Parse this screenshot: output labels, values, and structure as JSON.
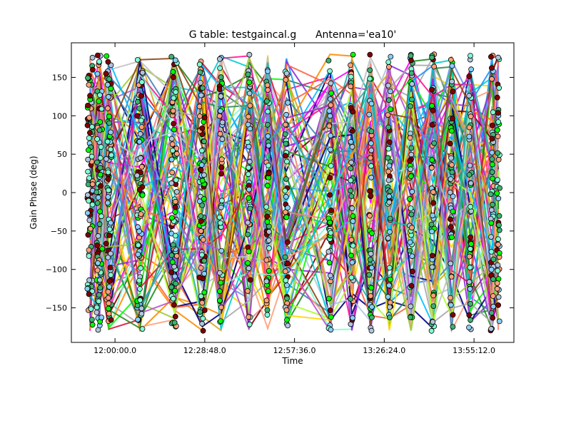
{
  "chart_data": {
    "type": "scatter",
    "title": "G table: testgaincal.g      Antenna='ea10'",
    "xlabel": "Time",
    "ylabel": "Gain Phase (deg)",
    "x_ticks": [
      "12:00:00.0",
      "12:28:48.0",
      "12:57:36.0",
      "13:26:24.0",
      "13:55:12.0"
    ],
    "y_ticks": [
      "150",
      "100",
      "50",
      "0",
      "−50",
      "−100",
      "−150"
    ],
    "xlim": [
      "11:46:00",
      "14:08:00"
    ],
    "ylim": [
      -195,
      195
    ],
    "grid": false,
    "legend": "none",
    "scans": [
      "11:52:00",
      "11:55:00",
      "11:58:00",
      "12:08:00",
      "12:19:00",
      "12:28:00",
      "12:34:00",
      "12:43:00",
      "12:49:00",
      "12:55:00",
      "13:09:00",
      "13:16:00",
      "13:22:00",
      "13:28:00",
      "13:35:00",
      "13:42:00",
      "13:48:00",
      "13:54:00",
      "14:01:00",
      "14:03:00"
    ],
    "series_colors": [
      "#ff00ff",
      "#00ff00",
      "#800000",
      "#1e90ff",
      "#ffd700",
      "#ff8c00",
      "#8a2be2",
      "#00ced1",
      "#ff1493",
      "#228b22",
      "#000080",
      "#b0c4de",
      "#7fffd4",
      "#a9a9a9",
      "#dc143c",
      "#ffa07a",
      "#6495ed",
      "#9acd32",
      "#2e8b57",
      "#ff6347",
      "#4682b4",
      "#daa520",
      "#9932cc",
      "#00bfff",
      "#adff2f",
      "#c0c0c0",
      "#8b4513",
      "#f08080",
      "#20b2aa",
      "#ba55d3"
    ],
    "marker_colors": [
      "#800000",
      "#00ff00",
      "#7fffd4",
      "#b0c4de",
      "#87cefa",
      "#3cb371",
      "#ffa07a"
    ]
  }
}
